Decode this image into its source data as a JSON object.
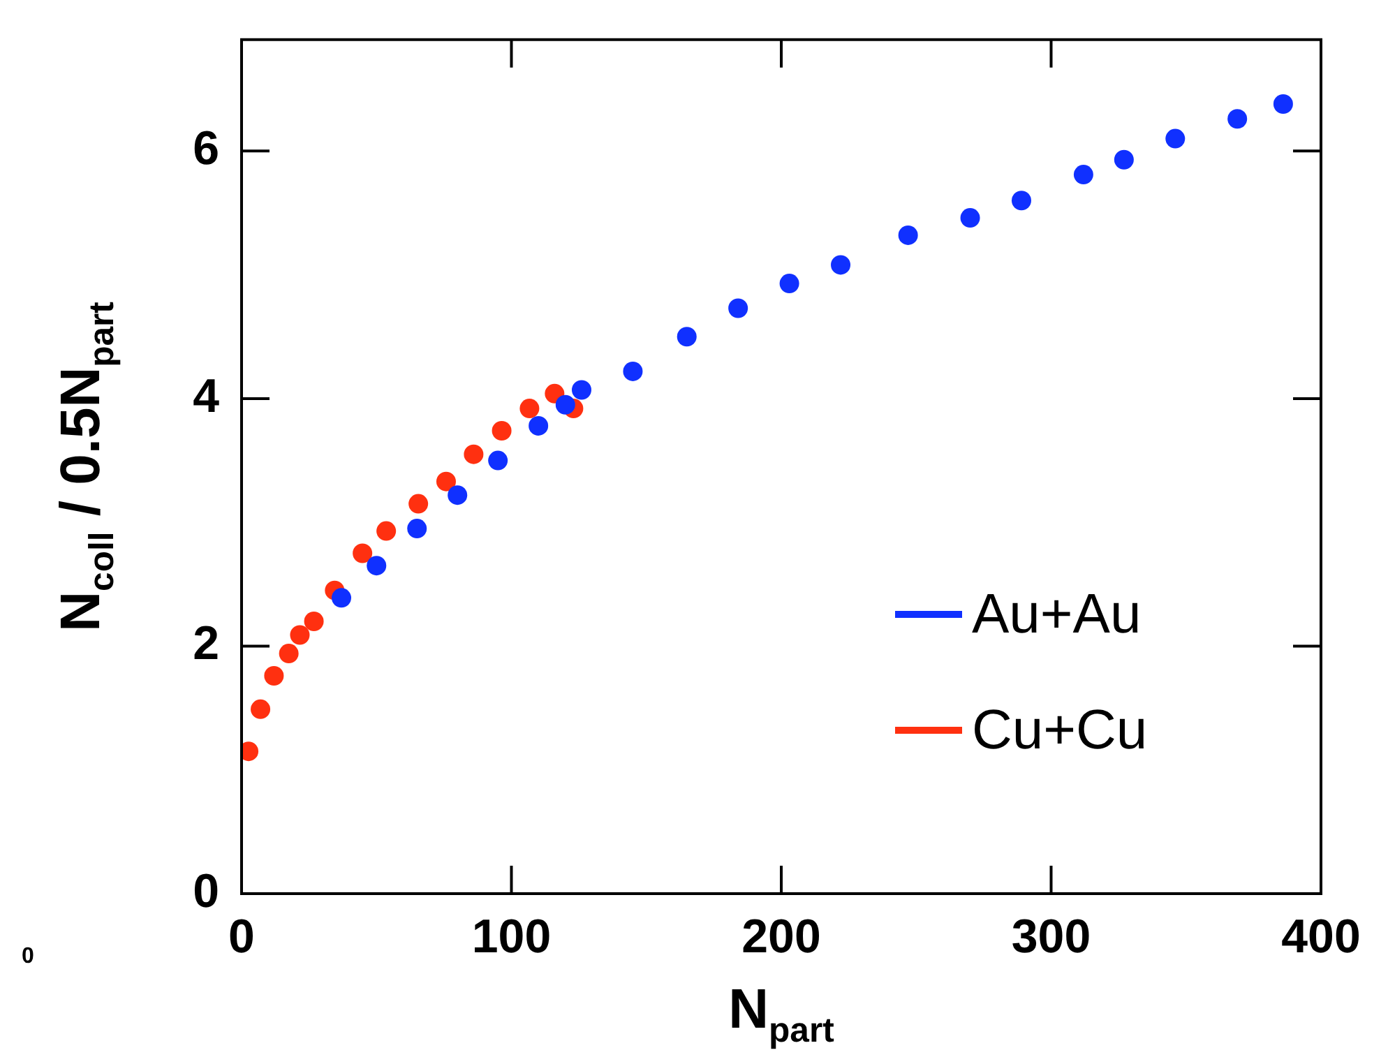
{
  "chart_data": {
    "type": "scatter",
    "xlabel": "N$_{part}$",
    "ylabel": "N$_{coll}$ / 0.5N$_{part}$",
    "xlim": [
      0,
      400
    ],
    "ylim": [
      0,
      6.9
    ],
    "xticks": [
      0,
      100,
      200,
      300,
      400
    ],
    "yticks": [
      0,
      2,
      4,
      6
    ],
    "grid": false,
    "legend": "bottom right",
    "marker": "circle",
    "annotations": [
      "0"
    ],
    "series": [
      {
        "name": "Au+Au",
        "color": "#1030ff",
        "x": [
          37,
          50,
          65,
          80,
          95,
          110,
          120,
          126,
          145,
          165,
          184,
          203,
          222,
          247,
          270,
          289,
          312,
          327,
          346,
          369,
          386
        ],
        "values": [
          2.39,
          2.65,
          2.95,
          3.22,
          3.5,
          3.78,
          3.95,
          4.07,
          4.22,
          4.5,
          4.73,
          4.93,
          5.08,
          5.32,
          5.46,
          5.6,
          5.81,
          5.93,
          6.1,
          6.26,
          6.38
        ]
      },
      {
        "name": "Cu+Cu",
        "color": "#ff3010",
        "x": [
          2.6,
          7,
          12,
          17.5,
          21.6,
          26.8,
          34.5,
          44.8,
          53.6,
          65.5,
          75.8,
          86,
          96.4,
          106.7,
          116,
          123
        ],
        "values": [
          1.15,
          1.49,
          1.76,
          1.94,
          2.09,
          2.2,
          2.45,
          2.75,
          2.93,
          3.15,
          3.33,
          3.55,
          3.74,
          3.92,
          4.04,
          3.92
        ]
      }
    ]
  }
}
